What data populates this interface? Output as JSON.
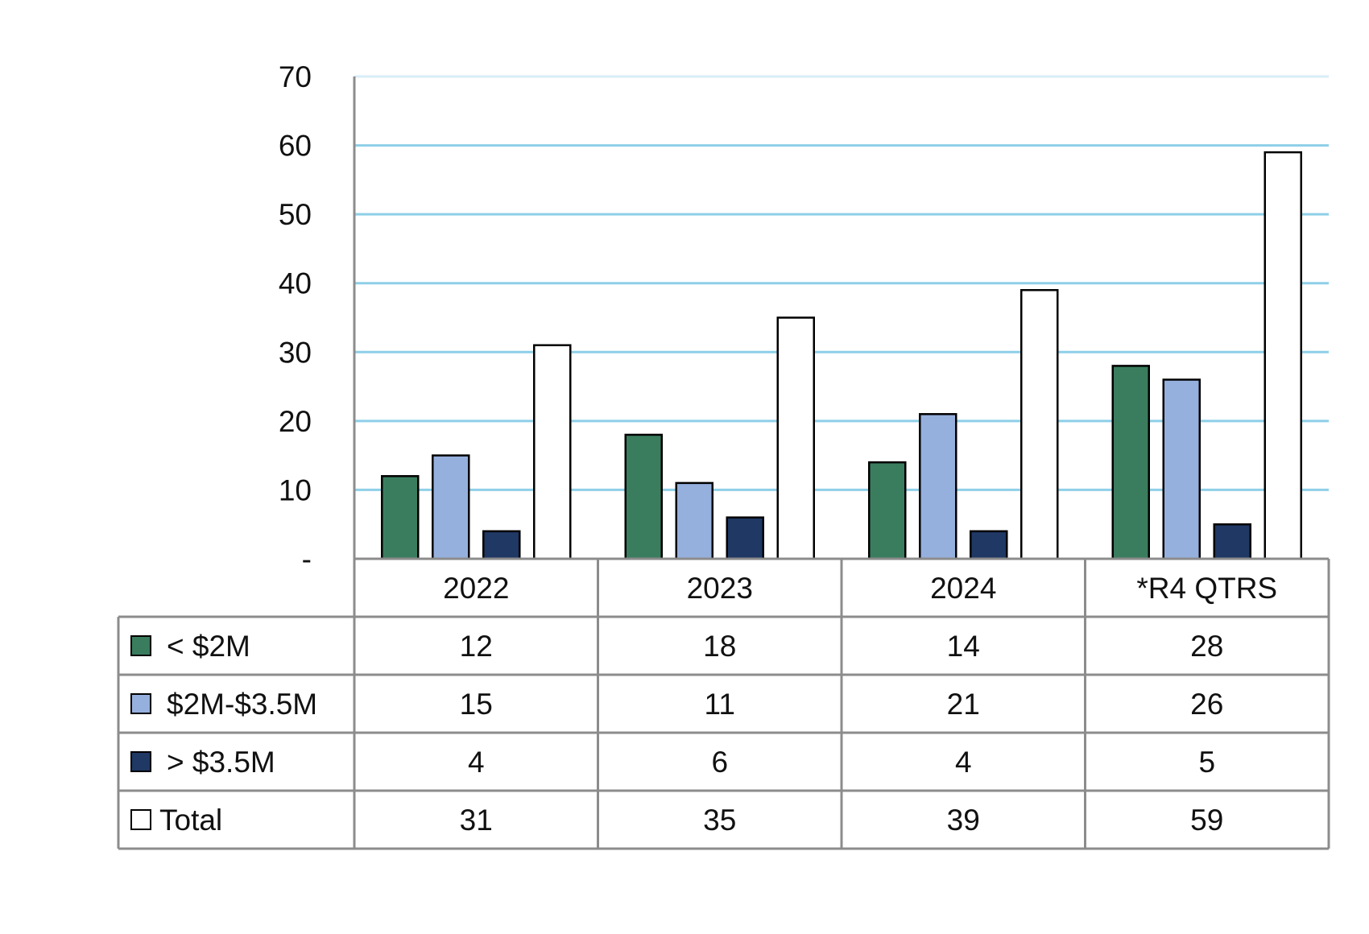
{
  "chart_data": {
    "type": "bar",
    "title": "",
    "xlabel": "",
    "ylabel": "",
    "categories": [
      "2022",
      "2023",
      "2024",
      "*R4 QTRS"
    ],
    "series": [
      {
        "name": "< $2M",
        "values": [
          12,
          18,
          14,
          28
        ],
        "color": "#3a7d5e"
      },
      {
        "name": "$2M-$3.5M",
        "values": [
          15,
          11,
          21,
          26
        ],
        "color": "#96b0dd"
      },
      {
        "name": "> $3.5M",
        "values": [
          4,
          6,
          4,
          5
        ],
        "color": "#1f3864"
      },
      {
        "name": "Total",
        "values": [
          31,
          35,
          39,
          59
        ],
        "color": "#ffffff"
      }
    ],
    "ylim": [
      0,
      70
    ],
    "yticks": [
      0,
      10,
      20,
      30,
      40,
      50,
      60,
      70
    ],
    "ytick_labels": [
      "-",
      "10",
      "20",
      "30",
      "40",
      "50",
      "60",
      "70"
    ],
    "grid": true,
    "grid_color": "#8ecfe8",
    "bar_outline_color": "#000000",
    "data_table": true,
    "table_border_color": "#8c8c8c"
  }
}
